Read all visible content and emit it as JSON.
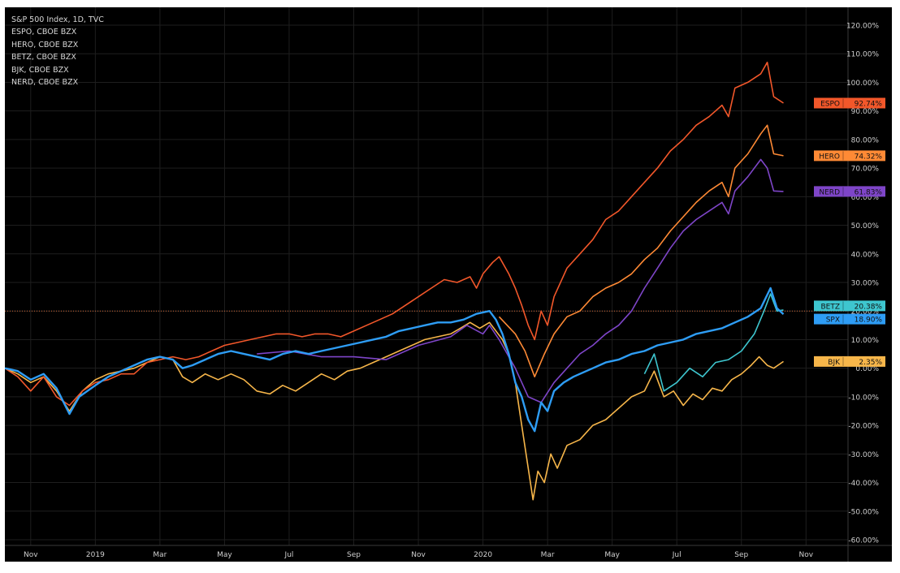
{
  "chart_data": {
    "type": "line",
    "legend": [
      "S&P 500 Index, 1D, TVC",
      "ESPO, CBOE BZX",
      "HERO, CBOE BZX",
      "BETZ, CBOE BZX",
      "BJK, CBOE BZX",
      "NERD, CBOE BZX"
    ],
    "x_tick_labels": [
      "Nov",
      "2019",
      "Mar",
      "May",
      "Jul",
      "Sep",
      "Nov",
      "2020",
      "Mar",
      "May",
      "Jul",
      "Sep",
      "Nov"
    ],
    "y_tick_labels": [
      "120.00%",
      "110.00%",
      "100.00%",
      "90.00%",
      "80.00%",
      "70.00%",
      "60.00%",
      "50.00%",
      "40.00%",
      "30.00%",
      "20.00%",
      "10.00%",
      "0.00%",
      "-10.00%",
      "-20.00%",
      "-30.00%",
      "-40.00%",
      "-50.00%",
      "-60.00%"
    ],
    "y_ticks": [
      120,
      110,
      100,
      90,
      80,
      70,
      60,
      50,
      40,
      30,
      20,
      10,
      0,
      -10,
      -20,
      -30,
      -40,
      -50,
      -60
    ],
    "ylim": [
      -60,
      120
    ],
    "x_unit": "months since Oct 2018 (0 = Oct 1, 2018)",
    "xlim": [
      0.2,
      26.3
    ],
    "x_ticks": [
      1,
      3,
      5,
      7,
      9,
      11,
      13,
      15,
      17,
      19,
      21,
      23,
      25
    ],
    "reference_line_value": 20,
    "colors": {
      "background": "#000000",
      "grid": "#1e1e1e",
      "axis_text": "#cfcfcf",
      "legend_text": "#d6d6d6",
      "reference_line": "#ff7a3a"
    },
    "series": [
      {
        "name": "BJK",
        "color": "#f7b64a",
        "end_label": "BJK",
        "end_value_label": "2.35%",
        "end_value": 2.35,
        "points": [
          [
            0.2,
            0
          ],
          [
            0.6,
            -2
          ],
          [
            1.0,
            -5
          ],
          [
            1.4,
            -3
          ],
          [
            1.8,
            -8
          ],
          [
            2.2,
            -15
          ],
          [
            2.6,
            -8
          ],
          [
            3.0,
            -4
          ],
          [
            3.4,
            -2
          ],
          [
            3.8,
            -1
          ],
          [
            4.2,
            0
          ],
          [
            4.6,
            2
          ],
          [
            5.0,
            4
          ],
          [
            5.4,
            3
          ],
          [
            5.7,
            -3
          ],
          [
            6.0,
            -5
          ],
          [
            6.4,
            -2
          ],
          [
            6.8,
            -4
          ],
          [
            7.2,
            -2
          ],
          [
            7.6,
            -4
          ],
          [
            8.0,
            -8
          ],
          [
            8.4,
            -9
          ],
          [
            8.8,
            -6
          ],
          [
            9.2,
            -8
          ],
          [
            9.6,
            -5
          ],
          [
            10.0,
            -2
          ],
          [
            10.4,
            -4
          ],
          [
            10.8,
            -1
          ],
          [
            11.2,
            0
          ],
          [
            11.6,
            2
          ],
          [
            12.0,
            4
          ],
          [
            12.4,
            6
          ],
          [
            12.8,
            8
          ],
          [
            13.2,
            10
          ],
          [
            13.6,
            11
          ],
          [
            14.0,
            12
          ],
          [
            14.3,
            14
          ],
          [
            14.6,
            16
          ],
          [
            14.9,
            14
          ],
          [
            15.2,
            16
          ],
          [
            15.6,
            10
          ],
          [
            15.8,
            5
          ],
          [
            16.0,
            -5
          ],
          [
            16.2,
            -20
          ],
          [
            16.4,
            -35
          ],
          [
            16.55,
            -46
          ],
          [
            16.7,
            -36
          ],
          [
            16.9,
            -40
          ],
          [
            17.1,
            -30
          ],
          [
            17.3,
            -35
          ],
          [
            17.6,
            -27
          ],
          [
            18.0,
            -25
          ],
          [
            18.4,
            -20
          ],
          [
            18.8,
            -18
          ],
          [
            19.2,
            -14
          ],
          [
            19.6,
            -10
          ],
          [
            20.0,
            -8
          ],
          [
            20.3,
            -1
          ],
          [
            20.6,
            -10
          ],
          [
            20.9,
            -8
          ],
          [
            21.2,
            -13
          ],
          [
            21.5,
            -9
          ],
          [
            21.8,
            -11
          ],
          [
            22.1,
            -7
          ],
          [
            22.4,
            -8
          ],
          [
            22.7,
            -4
          ],
          [
            23.0,
            -2
          ],
          [
            23.3,
            1
          ],
          [
            23.55,
            4
          ],
          [
            23.8,
            1
          ],
          [
            24.0,
            0
          ],
          [
            24.3,
            2.35
          ]
        ]
      },
      {
        "name": "NERD",
        "color": "#7e45c8",
        "end_label": "NERD",
        "end_value_label": "61.83%",
        "end_value": 61.83,
        "points": [
          [
            8.0,
            5
          ],
          [
            9.0,
            6
          ],
          [
            10.0,
            4
          ],
          [
            11.0,
            4
          ],
          [
            12.0,
            3
          ],
          [
            13.0,
            8
          ],
          [
            14.0,
            11
          ],
          [
            14.5,
            15
          ],
          [
            15.0,
            12
          ],
          [
            15.2,
            15
          ],
          [
            15.5,
            10
          ],
          [
            16.0,
            0
          ],
          [
            16.4,
            -10
          ],
          [
            16.8,
            -12
          ],
          [
            17.2,
            -5
          ],
          [
            17.6,
            0
          ],
          [
            18.0,
            5
          ],
          [
            18.4,
            8
          ],
          [
            18.8,
            12
          ],
          [
            19.2,
            15
          ],
          [
            19.6,
            20
          ],
          [
            20.0,
            28
          ],
          [
            20.4,
            35
          ],
          [
            20.8,
            42
          ],
          [
            21.2,
            48
          ],
          [
            21.6,
            52
          ],
          [
            22.0,
            55
          ],
          [
            22.4,
            58
          ],
          [
            22.6,
            54
          ],
          [
            22.8,
            62
          ],
          [
            23.2,
            67
          ],
          [
            23.6,
            73
          ],
          [
            23.8,
            70
          ],
          [
            24.0,
            62
          ],
          [
            24.3,
            61.83
          ]
        ]
      },
      {
        "name": "HERO",
        "color": "#ff8a35",
        "end_label": "HERO",
        "end_value_label": "74.32%",
        "end_value": 74.32,
        "points": [
          [
            15.5,
            18
          ],
          [
            16.0,
            12
          ],
          [
            16.3,
            6
          ],
          [
            16.6,
            -3
          ],
          [
            16.9,
            5
          ],
          [
            17.2,
            12
          ],
          [
            17.6,
            18
          ],
          [
            18.0,
            20
          ],
          [
            18.4,
            25
          ],
          [
            18.8,
            28
          ],
          [
            19.2,
            30
          ],
          [
            19.6,
            33
          ],
          [
            20.0,
            38
          ],
          [
            20.4,
            42
          ],
          [
            20.8,
            48
          ],
          [
            21.2,
            53
          ],
          [
            21.6,
            58
          ],
          [
            22.0,
            62
          ],
          [
            22.4,
            65
          ],
          [
            22.6,
            60
          ],
          [
            22.8,
            70
          ],
          [
            23.2,
            75
          ],
          [
            23.6,
            82
          ],
          [
            23.8,
            85
          ],
          [
            24.0,
            75
          ],
          [
            24.3,
            74.32
          ]
        ]
      },
      {
        "name": "ESPO",
        "color": "#f2572a",
        "end_label": "ESPO",
        "end_value_label": "92.74%",
        "end_value": 92.74,
        "points": [
          [
            0.2,
            0
          ],
          [
            0.6,
            -3
          ],
          [
            1.0,
            -8
          ],
          [
            1.4,
            -3
          ],
          [
            1.8,
            -10
          ],
          [
            2.2,
            -13
          ],
          [
            2.6,
            -8
          ],
          [
            3.0,
            -5
          ],
          [
            3.4,
            -4
          ],
          [
            3.8,
            -2
          ],
          [
            4.2,
            -2
          ],
          [
            4.6,
            2
          ],
          [
            5.0,
            3
          ],
          [
            5.4,
            4
          ],
          [
            5.8,
            3
          ],
          [
            6.2,
            4
          ],
          [
            6.6,
            6
          ],
          [
            7.0,
            8
          ],
          [
            7.4,
            9
          ],
          [
            7.8,
            10
          ],
          [
            8.2,
            11
          ],
          [
            8.6,
            12
          ],
          [
            9.0,
            12
          ],
          [
            9.4,
            11
          ],
          [
            9.8,
            12
          ],
          [
            10.2,
            12
          ],
          [
            10.6,
            11
          ],
          [
            11.0,
            13
          ],
          [
            11.4,
            15
          ],
          [
            11.8,
            17
          ],
          [
            12.2,
            19
          ],
          [
            12.6,
            22
          ],
          [
            13.0,
            25
          ],
          [
            13.4,
            28
          ],
          [
            13.8,
            31
          ],
          [
            14.2,
            30
          ],
          [
            14.6,
            32
          ],
          [
            14.8,
            28
          ],
          [
            15.0,
            33
          ],
          [
            15.3,
            37
          ],
          [
            15.5,
            39
          ],
          [
            15.8,
            33
          ],
          [
            16.0,
            28
          ],
          [
            16.2,
            22
          ],
          [
            16.4,
            15
          ],
          [
            16.6,
            10
          ],
          [
            16.8,
            20
          ],
          [
            17.0,
            15
          ],
          [
            17.2,
            25
          ],
          [
            17.6,
            35
          ],
          [
            18.0,
            40
          ],
          [
            18.4,
            45
          ],
          [
            18.8,
            52
          ],
          [
            19.2,
            55
          ],
          [
            19.6,
            60
          ],
          [
            20.0,
            65
          ],
          [
            20.4,
            70
          ],
          [
            20.8,
            76
          ],
          [
            21.2,
            80
          ],
          [
            21.6,
            85
          ],
          [
            22.0,
            88
          ],
          [
            22.4,
            92
          ],
          [
            22.6,
            88
          ],
          [
            22.8,
            98
          ],
          [
            23.2,
            100
          ],
          [
            23.6,
            103
          ],
          [
            23.8,
            107
          ],
          [
            24.0,
            95
          ],
          [
            24.3,
            92.74
          ]
        ]
      },
      {
        "name": "BETZ",
        "color": "#3ec6cf",
        "end_label": "BETZ",
        "end_value_label": "20.38%",
        "end_value": 20.38,
        "points": [
          [
            20.0,
            -2
          ],
          [
            20.3,
            5
          ],
          [
            20.6,
            -8
          ],
          [
            21.0,
            -5
          ],
          [
            21.4,
            0
          ],
          [
            21.8,
            -3
          ],
          [
            22.2,
            2
          ],
          [
            22.6,
            3
          ],
          [
            23.0,
            6
          ],
          [
            23.4,
            12
          ],
          [
            23.7,
            20
          ],
          [
            23.9,
            26
          ],
          [
            24.1,
            20
          ],
          [
            24.3,
            20.38
          ]
        ]
      },
      {
        "name": "SPX",
        "color": "#2e9df5",
        "end_label": "SPX",
        "end_value_label": "18.90%",
        "end_value": 18.9,
        "points": [
          [
            0.2,
            0
          ],
          [
            0.6,
            -1
          ],
          [
            1.0,
            -4
          ],
          [
            1.4,
            -2
          ],
          [
            1.8,
            -7
          ],
          [
            2.2,
            -16
          ],
          [
            2.5,
            -10
          ],
          [
            3.0,
            -6
          ],
          [
            3.4,
            -3
          ],
          [
            3.8,
            -1
          ],
          [
            4.2,
            1
          ],
          [
            4.6,
            3
          ],
          [
            5.0,
            4
          ],
          [
            5.4,
            3
          ],
          [
            5.7,
            0
          ],
          [
            6.0,
            1
          ],
          [
            6.4,
            3
          ],
          [
            6.8,
            5
          ],
          [
            7.2,
            6
          ],
          [
            7.6,
            5
          ],
          [
            8.0,
            4
          ],
          [
            8.4,
            3
          ],
          [
            8.8,
            5
          ],
          [
            9.2,
            6
          ],
          [
            9.6,
            5
          ],
          [
            10.0,
            6
          ],
          [
            10.4,
            7
          ],
          [
            10.8,
            8
          ],
          [
            11.2,
            9
          ],
          [
            11.6,
            10
          ],
          [
            12.0,
            11
          ],
          [
            12.4,
            13
          ],
          [
            12.8,
            14
          ],
          [
            13.2,
            15
          ],
          [
            13.6,
            16
          ],
          [
            14.0,
            16
          ],
          [
            14.4,
            17
          ],
          [
            14.8,
            19
          ],
          [
            15.2,
            20
          ],
          [
            15.4,
            17
          ],
          [
            15.6,
            12
          ],
          [
            15.8,
            5
          ],
          [
            16.0,
            -5
          ],
          [
            16.2,
            -10
          ],
          [
            16.4,
            -18
          ],
          [
            16.6,
            -22
          ],
          [
            16.8,
            -12
          ],
          [
            17.0,
            -15
          ],
          [
            17.2,
            -8
          ],
          [
            17.5,
            -5
          ],
          [
            17.8,
            -3
          ],
          [
            18.0,
            -2
          ],
          [
            18.4,
            0
          ],
          [
            18.8,
            2
          ],
          [
            19.2,
            3
          ],
          [
            19.6,
            5
          ],
          [
            20.0,
            6
          ],
          [
            20.4,
            8
          ],
          [
            20.8,
            9
          ],
          [
            21.2,
            10
          ],
          [
            21.6,
            12
          ],
          [
            22.0,
            13
          ],
          [
            22.4,
            14
          ],
          [
            22.8,
            16
          ],
          [
            23.2,
            18
          ],
          [
            23.6,
            21
          ],
          [
            23.9,
            28
          ],
          [
            24.1,
            21
          ],
          [
            24.3,
            18.9
          ]
        ]
      }
    ]
  }
}
